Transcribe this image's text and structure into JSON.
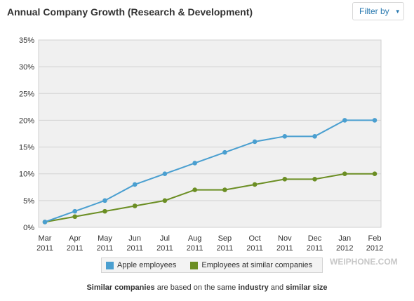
{
  "header": {
    "title": "Annual Company Growth (Research & Development)",
    "filter_label": "Filter by"
  },
  "chart_data": {
    "type": "line",
    "title": "",
    "xlabel": "",
    "ylabel": "",
    "categories": [
      [
        "Mar",
        "2011"
      ],
      [
        "Apr",
        "2011"
      ],
      [
        "May",
        "2011"
      ],
      [
        "Jun",
        "2011"
      ],
      [
        "Jul",
        "2011"
      ],
      [
        "Aug",
        "2011"
      ],
      [
        "Sep",
        "2011"
      ],
      [
        "Oct",
        "2011"
      ],
      [
        "Nov",
        "2011"
      ],
      [
        "Dec",
        "2011"
      ],
      [
        "Jan",
        "2012"
      ],
      [
        "Feb",
        "2012"
      ]
    ],
    "yticks": [
      "0%",
      "5%",
      "10%",
      "15%",
      "20%",
      "25%",
      "30%",
      "35%"
    ],
    "ylim": [
      0,
      35
    ],
    "grid": true,
    "series": [
      {
        "name": "Apple employees",
        "color": "#4a9fd0",
        "values": [
          1,
          3,
          5,
          8,
          10,
          12,
          14,
          16,
          17,
          17,
          20,
          20
        ]
      },
      {
        "name": "Employees at similar companies",
        "color": "#6b8e23",
        "values": [
          1,
          2,
          3,
          4,
          5,
          7,
          7,
          8,
          9,
          9,
          10,
          10
        ]
      }
    ],
    "legend_position": "bottom"
  },
  "footnote": {
    "part1": "Similar companies",
    "part2": " are based on the same ",
    "part3": "industry",
    "part4": " and ",
    "part5": "similar size"
  },
  "watermark": "WEIPHONE.COM"
}
